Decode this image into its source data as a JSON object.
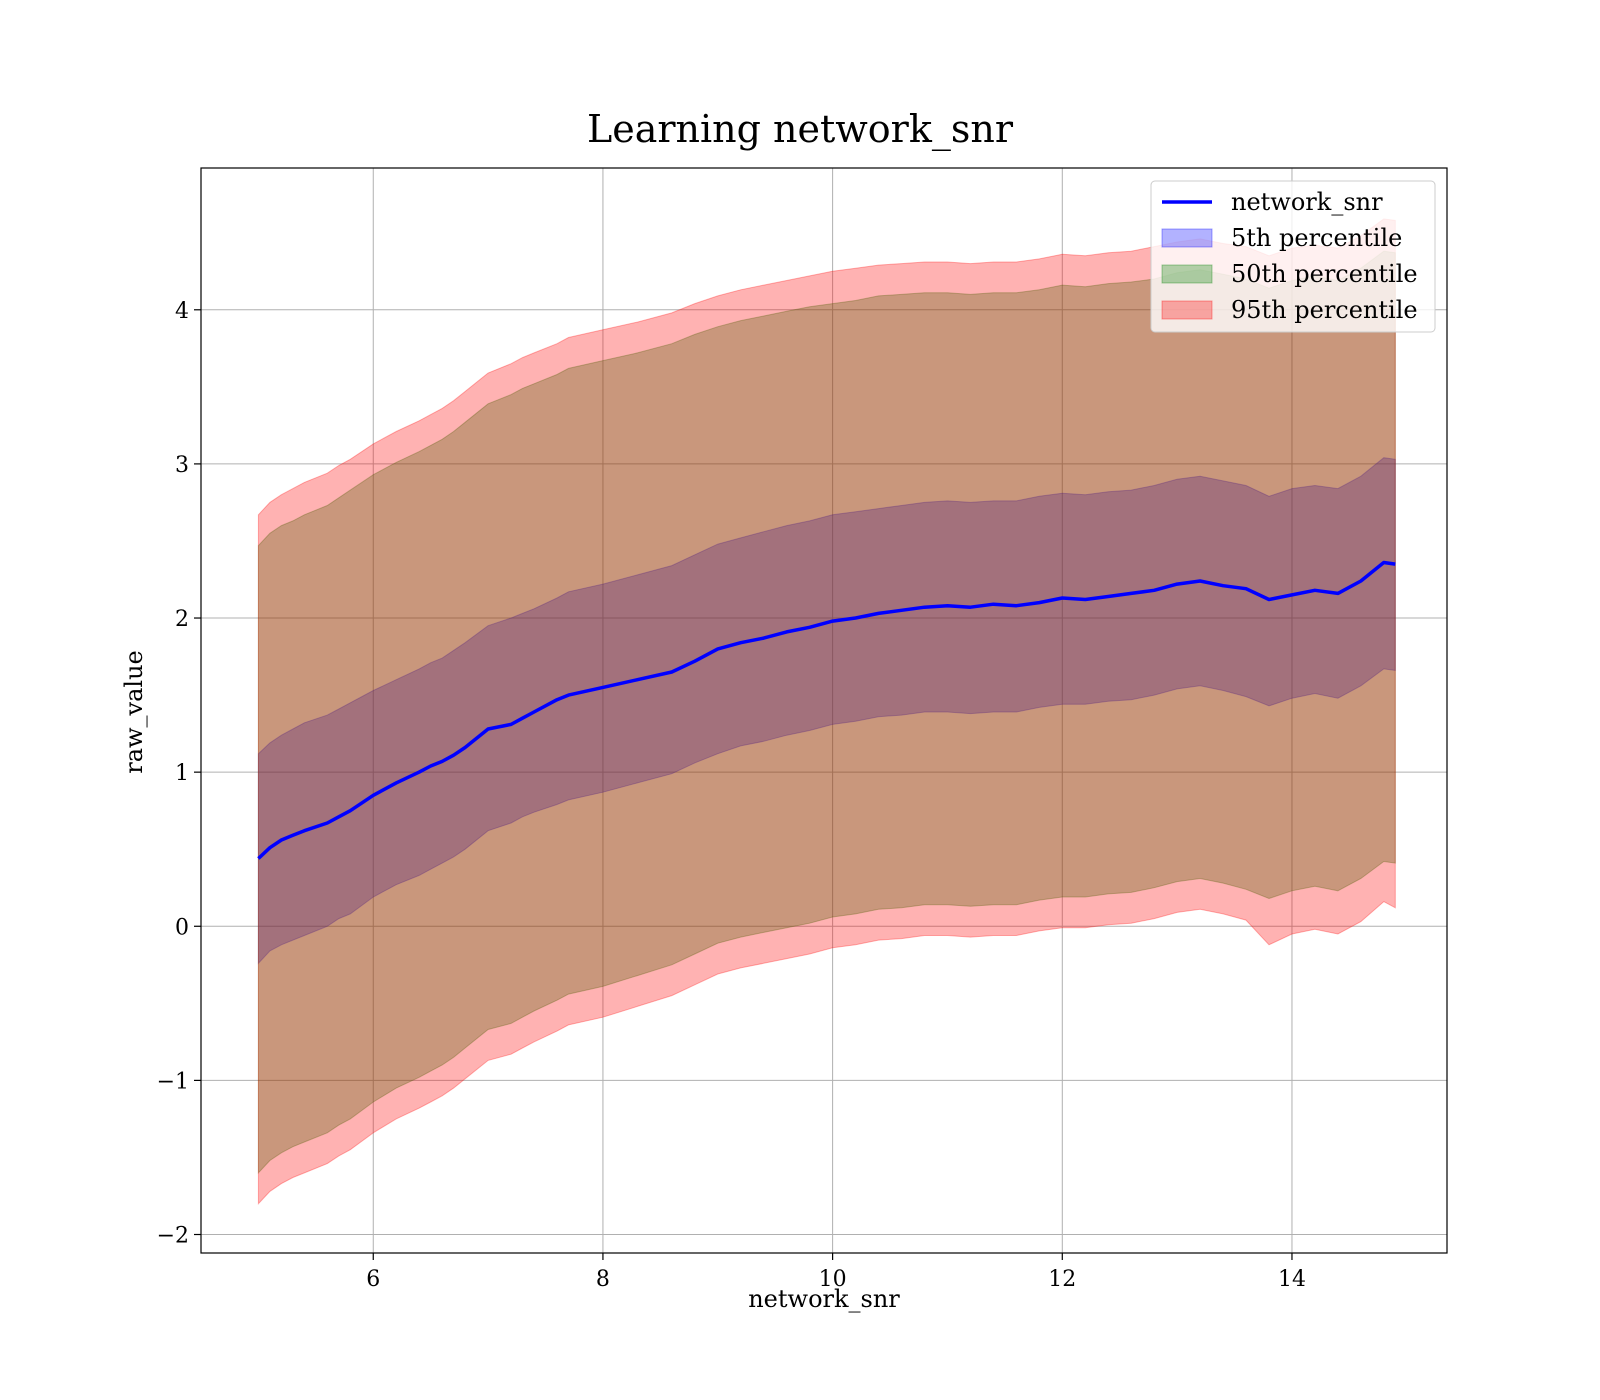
{
  "chart_data": {
    "type": "area",
    "title": "Learning network_snr",
    "xlabel": "network_snr",
    "ylabel": "raw_value",
    "xlim": [
      4.5,
      15.35
    ],
    "ylim": [
      -2.12,
      4.92
    ],
    "grid": true,
    "legend_position": "top-right",
    "x_ticks": [
      6,
      8,
      10,
      12,
      14
    ],
    "x_tick_labels": [
      "6",
      "8",
      "10",
      "12",
      "14"
    ],
    "y_ticks": [
      -2,
      -1,
      0,
      1,
      2,
      3,
      4
    ],
    "y_tick_labels": [
      "−2",
      "−1",
      "0",
      "1",
      "2",
      "3",
      "4"
    ],
    "x": [
      5.0,
      5.1,
      5.2,
      5.3,
      5.4,
      5.6,
      5.7,
      5.8,
      6.0,
      6.2,
      6.4,
      6.5,
      6.6,
      6.7,
      6.8,
      7.0,
      7.2,
      7.3,
      7.4,
      7.6,
      7.7,
      8.0,
      8.3,
      8.6,
      8.8,
      9.0,
      9.2,
      9.4,
      9.6,
      9.8,
      10.0,
      10.2,
      10.4,
      10.6,
      10.8,
      11.0,
      11.2,
      11.4,
      11.6,
      11.8,
      12.0,
      12.2,
      12.4,
      12.6,
      12.8,
      13.0,
      13.2,
      13.4,
      13.6,
      13.8,
      14.0,
      14.2,
      14.4,
      14.6,
      14.8,
      14.9
    ],
    "series": [
      {
        "name": "network_snr",
        "kind": "line",
        "color": "#0000ff",
        "values": [
          0.44,
          0.51,
          0.56,
          0.59,
          0.62,
          0.67,
          0.71,
          0.75,
          0.85,
          0.93,
          1.0,
          1.04,
          1.07,
          1.11,
          1.16,
          1.28,
          1.31,
          1.35,
          1.39,
          1.47,
          1.5,
          1.55,
          1.6,
          1.65,
          1.72,
          1.8,
          1.84,
          1.87,
          1.91,
          1.94,
          1.98,
          2.0,
          2.03,
          2.05,
          2.07,
          2.08,
          2.07,
          2.09,
          2.08,
          2.1,
          2.13,
          2.12,
          2.14,
          2.16,
          2.18,
          2.22,
          2.24,
          2.21,
          2.19,
          2.12,
          2.15,
          2.18,
          2.16,
          2.24,
          2.36,
          2.35
        ]
      },
      {
        "name": "5th percentile",
        "kind": "band",
        "color": "#0000ff",
        "lower": [
          -0.24,
          -0.16,
          -0.12,
          -0.09,
          -0.06,
          0.0,
          0.05,
          0.08,
          0.19,
          0.27,
          0.33,
          0.37,
          0.41,
          0.45,
          0.5,
          0.62,
          0.67,
          0.71,
          0.74,
          0.79,
          0.82,
          0.87,
          0.93,
          0.99,
          1.06,
          1.12,
          1.17,
          1.2,
          1.24,
          1.27,
          1.31,
          1.33,
          1.36,
          1.37,
          1.39,
          1.39,
          1.38,
          1.39,
          1.39,
          1.42,
          1.44,
          1.44,
          1.46,
          1.47,
          1.5,
          1.54,
          1.56,
          1.53,
          1.49,
          1.43,
          1.48,
          1.51,
          1.48,
          1.56,
          1.67,
          1.66
        ],
        "upper": [
          1.12,
          1.19,
          1.24,
          1.28,
          1.32,
          1.37,
          1.41,
          1.45,
          1.53,
          1.6,
          1.67,
          1.71,
          1.74,
          1.79,
          1.84,
          1.95,
          2.0,
          2.03,
          2.06,
          2.13,
          2.17,
          2.22,
          2.28,
          2.34,
          2.41,
          2.48,
          2.52,
          2.56,
          2.6,
          2.63,
          2.67,
          2.69,
          2.71,
          2.73,
          2.75,
          2.76,
          2.75,
          2.76,
          2.76,
          2.79,
          2.81,
          2.8,
          2.82,
          2.83,
          2.86,
          2.9,
          2.92,
          2.89,
          2.86,
          2.79,
          2.84,
          2.86,
          2.84,
          2.92,
          3.04,
          3.03
        ]
      },
      {
        "name": "50th percentile",
        "kind": "band",
        "color": "#008000",
        "lower": [
          -1.6,
          -1.52,
          -1.47,
          -1.43,
          -1.4,
          -1.34,
          -1.29,
          -1.25,
          -1.14,
          -1.05,
          -0.98,
          -0.94,
          -0.9,
          -0.85,
          -0.79,
          -0.67,
          -0.63,
          -0.59,
          -0.55,
          -0.48,
          -0.44,
          -0.39,
          -0.32,
          -0.25,
          -0.18,
          -0.11,
          -0.07,
          -0.04,
          -0.01,
          0.02,
          0.06,
          0.08,
          0.11,
          0.12,
          0.14,
          0.14,
          0.13,
          0.14,
          0.14,
          0.17,
          0.19,
          0.19,
          0.21,
          0.22,
          0.25,
          0.29,
          0.31,
          0.28,
          0.24,
          0.18,
          0.23,
          0.26,
          0.23,
          0.31,
          0.42,
          0.41
        ],
        "upper": [
          2.47,
          2.55,
          2.6,
          2.63,
          2.67,
          2.73,
          2.78,
          2.83,
          2.93,
          3.01,
          3.08,
          3.12,
          3.16,
          3.21,
          3.27,
          3.39,
          3.45,
          3.49,
          3.52,
          3.58,
          3.62,
          3.67,
          3.72,
          3.78,
          3.84,
          3.89,
          3.93,
          3.96,
          3.99,
          4.02,
          4.04,
          4.06,
          4.09,
          4.1,
          4.11,
          4.11,
          4.1,
          4.11,
          4.11,
          4.13,
          4.16,
          4.15,
          4.17,
          4.18,
          4.2,
          4.24,
          4.26,
          4.23,
          4.2,
          4.14,
          4.19,
          4.22,
          4.19,
          4.27,
          4.38,
          4.37
        ]
      },
      {
        "name": "95th percentile",
        "kind": "band",
        "color": "#ff0000",
        "lower": [
          -1.8,
          -1.72,
          -1.67,
          -1.63,
          -1.6,
          -1.54,
          -1.49,
          -1.45,
          -1.34,
          -1.25,
          -1.18,
          -1.14,
          -1.1,
          -1.05,
          -0.99,
          -0.87,
          -0.83,
          -0.79,
          -0.75,
          -0.68,
          -0.64,
          -0.59,
          -0.52,
          -0.45,
          -0.38,
          -0.31,
          -0.27,
          -0.24,
          -0.21,
          -0.18,
          -0.14,
          -0.12,
          -0.09,
          -0.08,
          -0.06,
          -0.06,
          -0.07,
          -0.06,
          -0.06,
          -0.03,
          -0.01,
          -0.01,
          0.01,
          0.02,
          0.05,
          0.09,
          0.11,
          0.08,
          0.04,
          -0.12,
          -0.05,
          -0.02,
          -0.05,
          0.03,
          0.16,
          0.12
        ],
        "upper": [
          2.67,
          2.75,
          2.8,
          2.84,
          2.88,
          2.94,
          2.99,
          3.03,
          3.13,
          3.21,
          3.28,
          3.32,
          3.36,
          3.41,
          3.47,
          3.59,
          3.65,
          3.69,
          3.72,
          3.78,
          3.82,
          3.87,
          3.92,
          3.98,
          4.04,
          4.09,
          4.13,
          4.16,
          4.19,
          4.22,
          4.25,
          4.27,
          4.29,
          4.3,
          4.31,
          4.31,
          4.3,
          4.31,
          4.31,
          4.33,
          4.36,
          4.35,
          4.37,
          4.38,
          4.41,
          4.44,
          4.46,
          4.43,
          4.41,
          4.35,
          4.4,
          4.42,
          4.4,
          4.48,
          4.59,
          4.58
        ]
      }
    ]
  }
}
